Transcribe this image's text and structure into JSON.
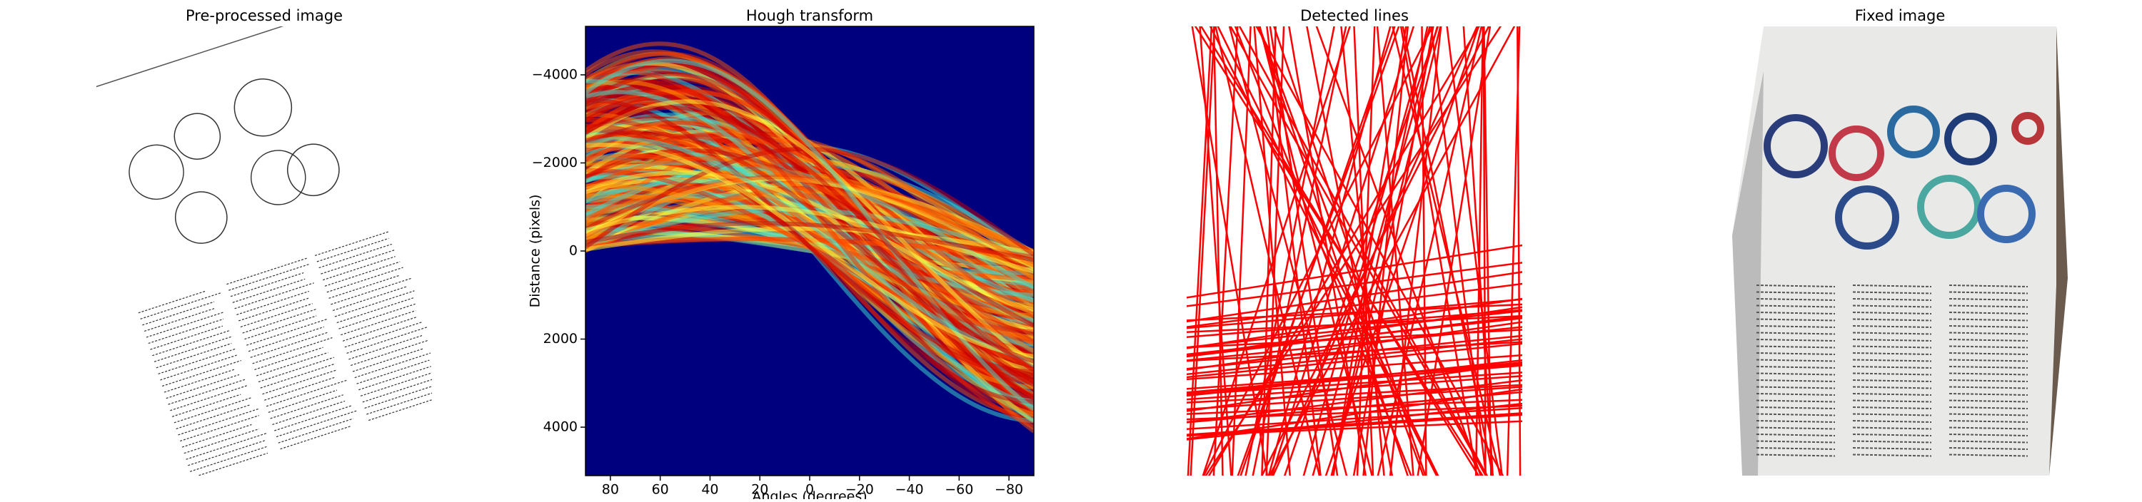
{
  "chart_data": [
    {
      "type": "image",
      "title": "Pre-processed image"
    },
    {
      "type": "heatmap",
      "title": "Hough transform",
      "x_label": "Angles (degrees)",
      "y_label": "Distance (pixels)",
      "xlim": [
        90,
        -90
      ],
      "ylim": [
        5100,
        -5100
      ],
      "xticks": [
        80,
        60,
        40,
        20,
        0,
        {
          "value": -20,
          "label": "−20"
        },
        {
          "value": -40,
          "label": "−40"
        },
        {
          "value": -60,
          "label": "−60"
        },
        {
          "value": -80,
          "label": "−80"
        }
      ],
      "yticks": [
        {
          "value": -4000,
          "label": "−4000"
        },
        {
          "value": -2000,
          "label": "−2000"
        },
        0,
        2000,
        4000
      ]
    },
    {
      "type": "image",
      "title": "Detected lines"
    },
    {
      "type": "image",
      "title": "Fixed image"
    }
  ]
}
